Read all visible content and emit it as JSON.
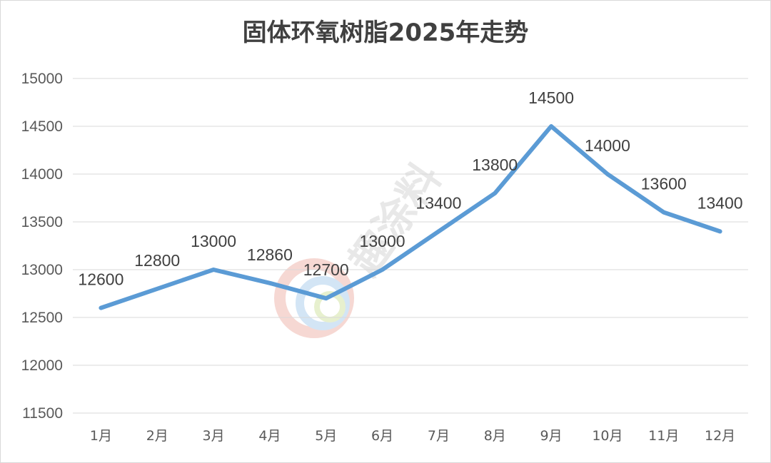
{
  "chart_data": {
    "type": "line",
    "title": "固体环氧树脂2025年走势",
    "categories": [
      "1月",
      "2月",
      "3月",
      "4月",
      "5月",
      "6月",
      "7月",
      "8月",
      "9月",
      "10月",
      "11月",
      "12月"
    ],
    "series": [
      {
        "values": [
          12600,
          12800,
          13000,
          12860,
          12700,
          13000,
          13400,
          13800,
          14500,
          14000,
          13600,
          13400
        ]
      }
    ],
    "data_labels": [
      "12600",
      "12800",
      "13000",
      "12860",
      "12700",
      "13000",
      "13400",
      "13800",
      "14500",
      "14000",
      "13600",
      "13400"
    ],
    "ylim": [
      11500,
      15000
    ],
    "yticks": [
      "11500",
      "12000",
      "12500",
      "13000",
      "13500",
      "14000",
      "14500",
      "15000"
    ],
    "xlabel": "",
    "ylabel": "",
    "grid": true,
    "legend": "none",
    "colors": {
      "series": "#5b9bd5",
      "grid": "#d9d9d9",
      "text": "#404040",
      "tick": "#595959"
    }
  },
  "watermark": {
    "text": "趣涂料"
  }
}
